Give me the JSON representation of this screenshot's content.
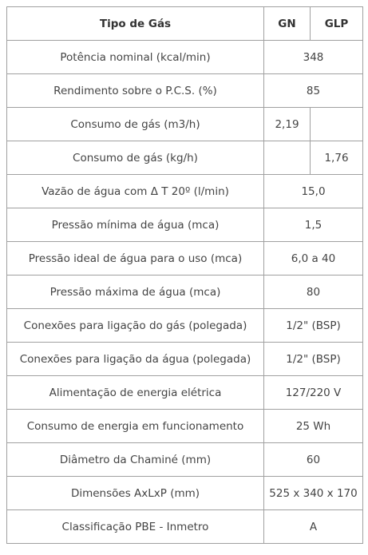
{
  "table": {
    "header": [
      "Tipo de Gás",
      "GN",
      "GLP"
    ],
    "rows": [
      {
        "label": "Potência nominal (kcal/min)",
        "value": "348"
      },
      {
        "label": "Rendimento sobre o P.C.S. (%)",
        "value": "85"
      },
      {
        "label": "Consumo de gás (m3/h)",
        "gn": "2,19"
      },
      {
        "label": "Consumo de gás (kg/h)",
        "glp": "1,76"
      },
      {
        "label": "Vazão de água com Δ T 20º (l/min)",
        "value": "15,0"
      },
      {
        "label": "Pressão mínima de água (mca)",
        "value": "1,5"
      },
      {
        "label": "Pressão ideal de água para o uso (mca)",
        "value": "6,0 a 40"
      },
      {
        "label": "Pressão máxima de água (mca)",
        "value": "80"
      },
      {
        "label": "Conexões para ligação do gás (polegada)",
        "value": "1/2\" (BSP)"
      },
      {
        "label": "Conexões para ligação da água (polegada)",
        "value": "1/2\" (BSP)"
      },
      {
        "label": "Alimentação de energia elétrica",
        "value": "127/220 V"
      },
      {
        "label": "Consumo de energia em funcionamento",
        "value": "25 Wh"
      },
      {
        "label": "Diâmetro da Chaminé (mm)",
        "value": "60"
      },
      {
        "label": "Dimensões AxLxP (mm)",
        "value": "525 x 340 x 170"
      },
      {
        "label": "Classificação PBE - Inmetro",
        "value": "A"
      }
    ]
  }
}
